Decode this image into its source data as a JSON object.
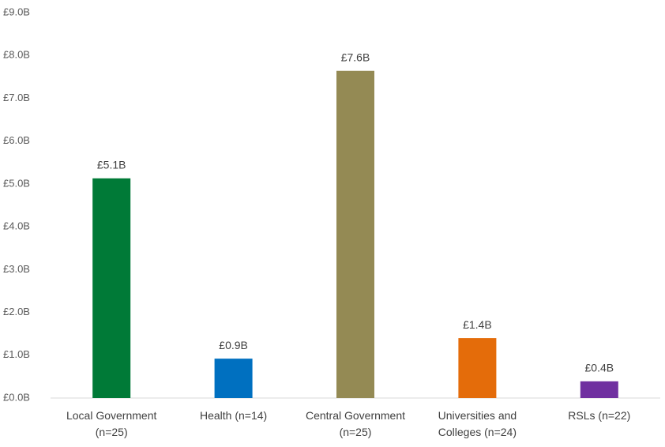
{
  "chart_data": {
    "type": "bar",
    "categories": [
      "Local Government\n(n=25)",
      "Health (n=14)",
      "Central Government\n(n=25)",
      "Universities and\nColleges (n=24)",
      "RSLs (n=22)"
    ],
    "values": [
      5.13,
      0.92,
      7.64,
      1.4,
      0.39
    ],
    "value_labels": [
      "£5.1B",
      "£0.9B",
      "£7.6B",
      "£1.4B",
      "£0.4B"
    ],
    "colors": [
      "#007a37",
      "#0070c0",
      "#948a54",
      "#e46c0a",
      "#7030a0"
    ],
    "ylim": [
      0,
      9
    ],
    "yticks": [
      {
        "value": 0,
        "label": "£0.0B"
      },
      {
        "value": 1,
        "label": "£1.0B"
      },
      {
        "value": 2,
        "label": "£2.0B"
      },
      {
        "value": 3,
        "label": "£3.0B"
      },
      {
        "value": 4,
        "label": "£4.0B"
      },
      {
        "value": 5,
        "label": "£5.0B"
      },
      {
        "value": 6,
        "label": "£6.0B"
      },
      {
        "value": 7,
        "label": "£7.0B"
      },
      {
        "value": 8,
        "label": "£8.0B"
      },
      {
        "value": 9,
        "label": "£9.0B"
      }
    ],
    "grid": false
  }
}
